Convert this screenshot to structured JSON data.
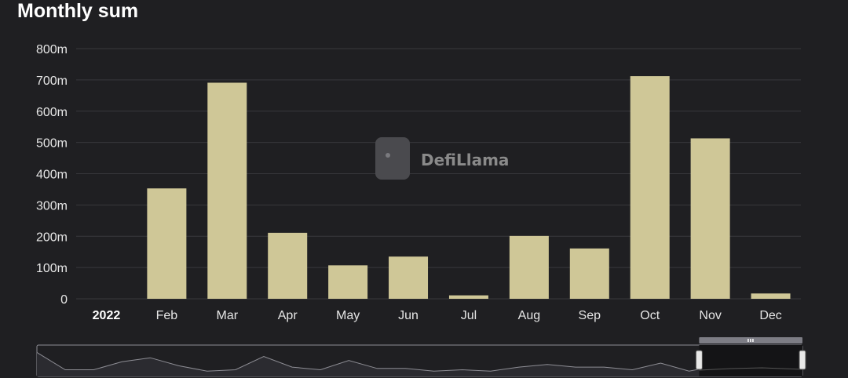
{
  "title": "Monthly sum",
  "watermark": "DefiLlama",
  "colors": {
    "background": "#1f1f22",
    "bar": "#cfc797",
    "grid": "#38383c",
    "text": "#e6e6e6",
    "slider_fill": "#2b2b30",
    "slider_line": "#8d8d94"
  },
  "chart_data": {
    "type": "bar",
    "title": "Monthly sum",
    "categories": [
      "2022",
      "Feb",
      "Mar",
      "Apr",
      "May",
      "Jun",
      "Jul",
      "Aug",
      "Sep",
      "Oct",
      "Nov",
      "Dec"
    ],
    "values": [
      0,
      353,
      691,
      211,
      107,
      135,
      11,
      201,
      161,
      712,
      513,
      17
    ],
    "unit": "m",
    "ylim": [
      0,
      800
    ],
    "yticks": [
      0,
      100,
      200,
      300,
      400,
      500,
      600,
      700,
      800
    ],
    "ytick_labels": [
      "0",
      "100m",
      "200m",
      "300m",
      "400m",
      "500m",
      "600m",
      "700m",
      "800m"
    ],
    "grid": true,
    "legend": "none"
  },
  "zoom_slider": {
    "overview_values": [
      0.9,
      0.25,
      0.25,
      0.55,
      0.7,
      0.4,
      0.2,
      0.25,
      0.75,
      0.35,
      0.25,
      0.6,
      0.3,
      0.3,
      0.2,
      0.25,
      0.2,
      0.35,
      0.45,
      0.35,
      0.35,
      0.25,
      0.5,
      0.2,
      0.4,
      0.25,
      0.35,
      0.2
    ],
    "selected_range": [
      0.865,
      1.0
    ]
  }
}
